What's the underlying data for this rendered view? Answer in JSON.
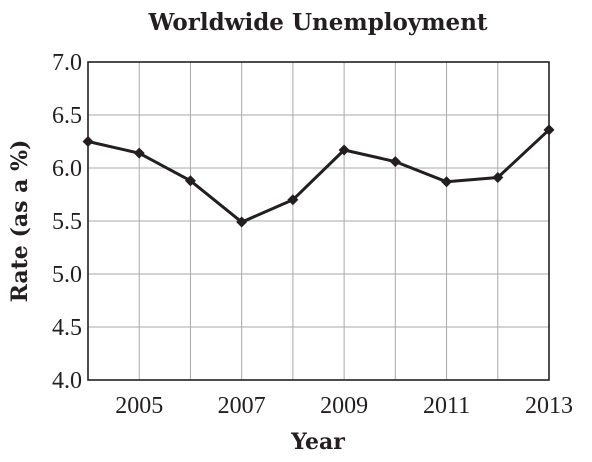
{
  "chart_data": {
    "type": "line",
    "title": "Worldwide Unemployment",
    "xlabel": "Year",
    "ylabel": "Rate (as a %)",
    "x": [
      2004,
      2005,
      2006,
      2007,
      2008,
      2009,
      2010,
      2011,
      2012,
      2013
    ],
    "values": [
      6.25,
      6.14,
      5.88,
      5.49,
      5.7,
      6.17,
      6.06,
      5.87,
      5.91,
      6.36
    ],
    "xlim": [
      2004,
      2013
    ],
    "ylim": [
      4.0,
      7.0
    ],
    "x_tick_labels": [
      "2005",
      "2007",
      "2009",
      "2011",
      "2013"
    ],
    "y_tick_labels": [
      "4.0",
      "4.5",
      "5.0",
      "5.5",
      "6.0",
      "6.5",
      "7.0"
    ],
    "grid": true,
    "marker": "diamond",
    "line_color": "#231f20",
    "grid_color": "#a7a9ac"
  }
}
